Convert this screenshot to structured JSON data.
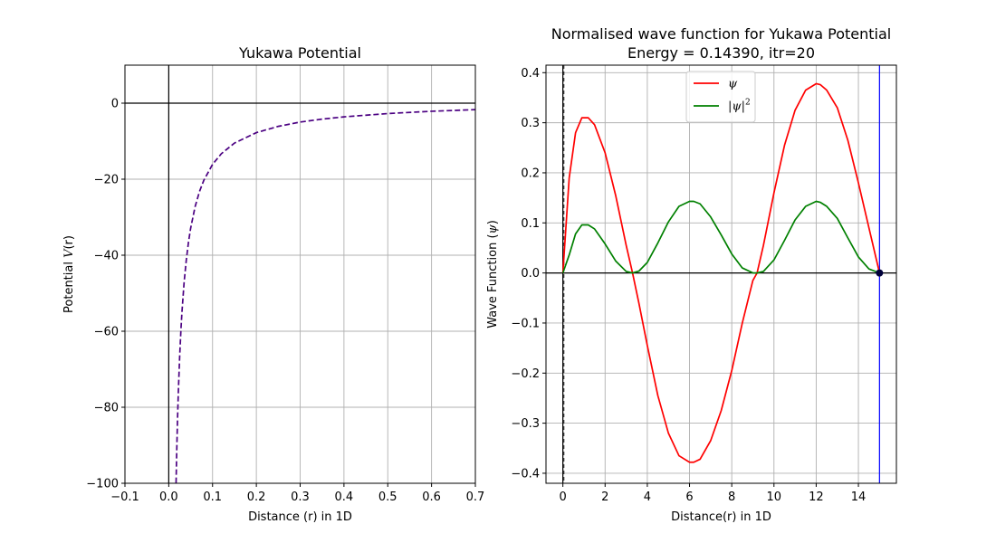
{
  "chart_data": [
    {
      "type": "line",
      "title": "Yukawa Potential",
      "xlabel": "Distance (r) in 1D",
      "ylabel": "Potential V(r)",
      "ylabel_main": "Potential ",
      "ylabel_var": "V",
      "ylabel_arg": "(r)",
      "xlim": [
        -0.1,
        0.7
      ],
      "ylim": [
        -100,
        10
      ],
      "xticks": [
        -0.1,
        0.0,
        0.1,
        0.2,
        0.3,
        0.4,
        0.5,
        0.6,
        0.7
      ],
      "xtick_labels": [
        "−0.1",
        "0.0",
        "0.1",
        "0.2",
        "0.3",
        "0.4",
        "0.5",
        "0.6",
        "0.7"
      ],
      "yticks": [
        -100,
        -80,
        -60,
        -40,
        -20,
        0
      ],
      "ytick_labels": [
        "−100",
        "−80",
        "−60",
        "−40",
        "−20",
        "0"
      ],
      "grid": true,
      "reference_lines": {
        "x": 0,
        "y": 0,
        "color": "#000000"
      },
      "series": [
        {
          "style": "dashed",
          "color": "#4b0082",
          "x": [
            0.0167,
            0.018,
            0.02,
            0.022,
            0.025,
            0.028,
            0.03,
            0.035,
            0.04,
            0.045,
            0.05,
            0.06,
            0.07,
            0.08,
            0.1,
            0.12,
            0.15,
            0.2,
            0.25,
            0.3,
            0.35,
            0.4,
            0.5,
            0.6,
            0.7
          ],
          "y": [
            -99.9,
            -92.6,
            -83.2,
            -75.6,
            -66.4,
            -59.2,
            -55.2,
            -47.2,
            -41.3,
            -36.6,
            -32.9,
            -27.3,
            -23.3,
            -20.3,
            -16.1,
            -13.3,
            -10.5,
            -7.75,
            -6.1,
            -4.97,
            -4.2,
            -3.6,
            -2.73,
            -2.13,
            -1.7
          ]
        }
      ]
    },
    {
      "type": "line",
      "title_line1": "Normalised wave function for Yukawa Potential",
      "title_line2": "Energy =  0.14390, itr=20",
      "xlabel": "Distance(r) in 1D",
      "ylabel": "Wave Function (ψ)",
      "ylabel_main": "Wave Function (",
      "ylabel_var": "ψ",
      "ylabel_end": ")",
      "xlim": [
        -0.8,
        15.8
      ],
      "ylim": [
        -0.42,
        0.415
      ],
      "xticks": [
        0,
        2,
        4,
        6,
        8,
        10,
        12,
        14
      ],
      "xtick_labels": [
        "0",
        "2",
        "4",
        "6",
        "8",
        "10",
        "12",
        "14"
      ],
      "yticks": [
        -0.4,
        -0.3,
        -0.2,
        -0.1,
        0.0,
        0.1,
        0.2,
        0.3,
        0.4
      ],
      "ytick_labels": [
        "−0.4",
        "−0.3",
        "−0.2",
        "−0.1",
        "0.0",
        "0.1",
        "0.2",
        "0.3",
        "0.4"
      ],
      "grid": true,
      "reference_lines": {
        "x_dashed": 0,
        "y": 0,
        "boundary_x": 15,
        "boundary_color": "#0000ff"
      },
      "end_point": {
        "x": 15,
        "y": 0,
        "color": "#00003a"
      },
      "legend": {
        "position": "top-center",
        "entries": [
          {
            "label": "ψ",
            "sup": "",
            "color": "#ff0000"
          },
          {
            "label": "|ψ|",
            "sup": "2",
            "color": "#008000"
          }
        ]
      },
      "series": [
        {
          "name": "ψ",
          "color": "#ff0000",
          "x": [
            0,
            0.3,
            0.6,
            0.9,
            1.2,
            1.5,
            2.0,
            2.5,
            3.0,
            3.3,
            3.6,
            4.0,
            4.5,
            5.0,
            5.5,
            6.0,
            6.2,
            6.5,
            7.0,
            7.5,
            8.0,
            8.5,
            9.0,
            9.2,
            9.5,
            10.0,
            10.5,
            11.0,
            11.5,
            12.0,
            12.2,
            12.5,
            13.0,
            13.5,
            14.0,
            14.5,
            15.0
          ],
          "y": [
            0.0,
            0.19,
            0.28,
            0.31,
            0.31,
            0.296,
            0.24,
            0.155,
            0.055,
            0.0,
            -0.06,
            -0.145,
            -0.245,
            -0.32,
            -0.365,
            -0.378,
            -0.378,
            -0.372,
            -0.335,
            -0.275,
            -0.195,
            -0.1,
            -0.015,
            0.0,
            0.055,
            0.16,
            0.255,
            0.325,
            0.365,
            0.378,
            0.376,
            0.365,
            0.33,
            0.265,
            0.18,
            0.09,
            0.0
          ]
        },
        {
          "name": "|ψ|²",
          "color": "#008000",
          "x": [
            0,
            0.3,
            0.6,
            0.9,
            1.2,
            1.5,
            2.0,
            2.5,
            3.0,
            3.3,
            3.6,
            4.0,
            4.5,
            5.0,
            5.5,
            6.0,
            6.2,
            6.5,
            7.0,
            7.5,
            8.0,
            8.5,
            9.0,
            9.2,
            9.5,
            10.0,
            10.5,
            11.0,
            11.5,
            12.0,
            12.2,
            12.5,
            13.0,
            13.5,
            14.0,
            14.5,
            15.0
          ],
          "y": [
            0.0,
            0.036,
            0.078,
            0.096,
            0.096,
            0.088,
            0.058,
            0.024,
            0.003,
            0.0,
            0.0036,
            0.021,
            0.06,
            0.102,
            0.133,
            0.143,
            0.143,
            0.138,
            0.112,
            0.076,
            0.038,
            0.01,
            0.0002,
            0.0,
            0.003,
            0.026,
            0.065,
            0.106,
            0.133,
            0.143,
            0.141,
            0.133,
            0.109,
            0.07,
            0.032,
            0.008,
            0.0
          ]
        }
      ]
    }
  ]
}
